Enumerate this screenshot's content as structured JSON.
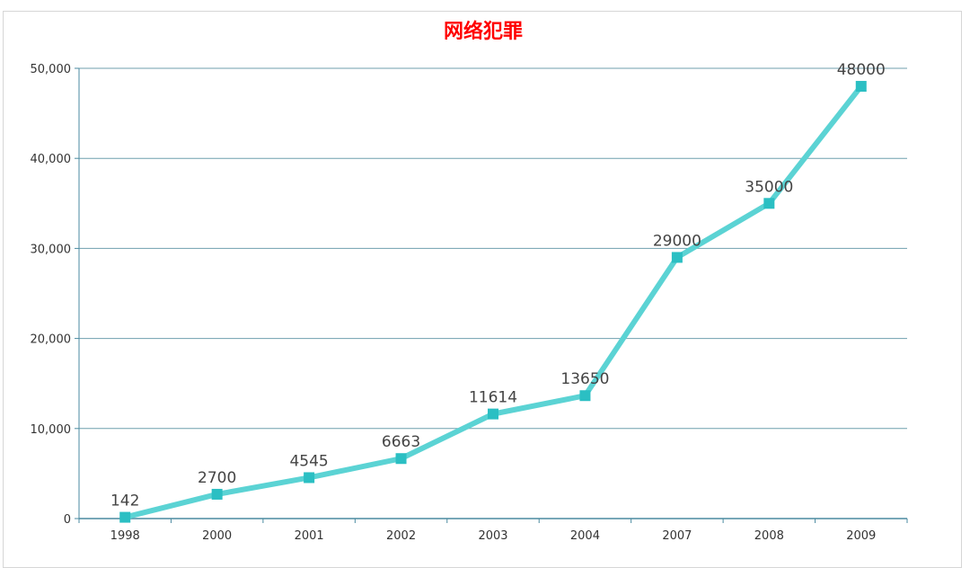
{
  "chart_data": {
    "type": "line",
    "title": "网络犯罪",
    "xlabel": "",
    "ylabel": "",
    "categories": [
      "1998",
      "2000",
      "2001",
      "2002",
      "2003",
      "2004",
      "2007",
      "2008",
      "2009"
    ],
    "series": [
      {
        "values": [
          142,
          2700,
          4545,
          6663,
          11614,
          13650,
          29000,
          35000,
          48000
        ],
        "color": "#5bd3d4",
        "marker_color": "#2bbfc3"
      }
    ],
    "data_labels": [
      "142",
      "2700",
      "4545",
      "6663",
      "11614",
      "13650",
      "29000",
      "35000",
      "48000"
    ],
    "ylim": [
      0,
      50000
    ],
    "yticks": [
      0,
      10000,
      20000,
      30000,
      40000,
      50000
    ],
    "ytick_labels": [
      "0",
      "10,000",
      "20,000",
      "30,000",
      "40,000",
      "50,000"
    ],
    "grid": true,
    "grid_color": "#6f9fae",
    "axis_color": "#4a8aa0",
    "title_color": "#ff0000"
  }
}
